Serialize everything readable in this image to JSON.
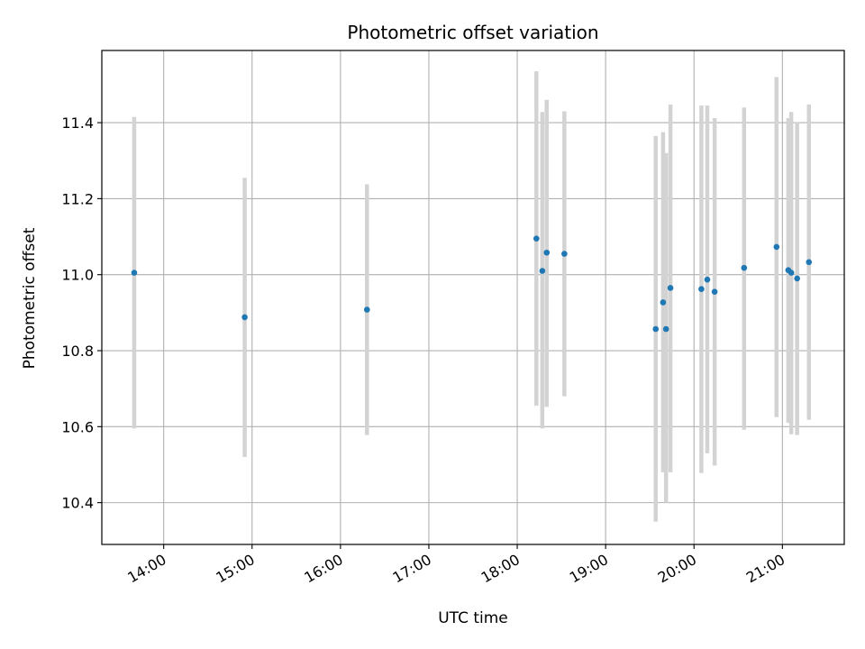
{
  "chart_data": {
    "type": "scatter",
    "title": "Photometric offset variation",
    "xlabel": "UTC time",
    "ylabel": "Photometric offset",
    "x_tick_labels": [
      "14:00",
      "15:00",
      "16:00",
      "17:00",
      "18:00",
      "19:00",
      "20:00",
      "21:00"
    ],
    "y_tick_labels": [
      "10.4",
      "10.6",
      "10.8",
      "11.0",
      "11.2",
      "11.4"
    ],
    "y_ticks": [
      10.4,
      10.6,
      10.8,
      11.0,
      11.2,
      11.4
    ],
    "xlim": [
      "13:18",
      "21:42"
    ],
    "ylim": [
      10.29,
      11.59
    ],
    "grid": true,
    "marker_color": "#1f77b4",
    "errorbar_color": "#d3d3d3",
    "points": [
      {
        "x": "13:40",
        "y": 11.005,
        "yerr_low": 10.595,
        "yerr_high": 11.415
      },
      {
        "x": "14:55",
        "y": 10.888,
        "yerr_low": 10.52,
        "yerr_high": 11.255
      },
      {
        "x": "16:18",
        "y": 10.908,
        "yerr_low": 10.578,
        "yerr_high": 11.238
      },
      {
        "x": "18:13",
        "y": 11.095,
        "yerr_low": 10.655,
        "yerr_high": 11.535
      },
      {
        "x": "18:17",
        "y": 11.01,
        "yerr_low": 10.595,
        "yerr_high": 11.428
      },
      {
        "x": "18:20",
        "y": 11.058,
        "yerr_low": 10.652,
        "yerr_high": 11.46
      },
      {
        "x": "18:32",
        "y": 11.055,
        "yerr_low": 10.68,
        "yerr_high": 11.43
      },
      {
        "x": "19:34",
        "y": 10.857,
        "yerr_low": 10.35,
        "yerr_high": 11.365
      },
      {
        "x": "19:39",
        "y": 10.927,
        "yerr_low": 10.48,
        "yerr_high": 11.375
      },
      {
        "x": "19:41",
        "y": 10.857,
        "yerr_low": 10.4,
        "yerr_high": 11.32
      },
      {
        "x": "19:44",
        "y": 10.965,
        "yerr_low": 10.48,
        "yerr_high": 11.448
      },
      {
        "x": "20:05",
        "y": 10.962,
        "yerr_low": 10.478,
        "yerr_high": 11.445
      },
      {
        "x": "20:09",
        "y": 10.987,
        "yerr_low": 10.53,
        "yerr_high": 11.445
      },
      {
        "x": "20:14",
        "y": 10.955,
        "yerr_low": 10.498,
        "yerr_high": 11.412
      },
      {
        "x": "20:34",
        "y": 11.018,
        "yerr_low": 10.592,
        "yerr_high": 11.44
      },
      {
        "x": "20:56",
        "y": 11.073,
        "yerr_low": 10.625,
        "yerr_high": 11.52
      },
      {
        "x": "21:04",
        "y": 11.012,
        "yerr_low": 10.61,
        "yerr_high": 11.412
      },
      {
        "x": "21:06",
        "y": 11.005,
        "yerr_low": 10.58,
        "yerr_high": 11.428
      },
      {
        "x": "21:10",
        "y": 10.99,
        "yerr_low": 10.578,
        "yerr_high": 11.402
      },
      {
        "x": "21:18",
        "y": 11.033,
        "yerr_low": 10.618,
        "yerr_high": 11.448
      }
    ]
  }
}
